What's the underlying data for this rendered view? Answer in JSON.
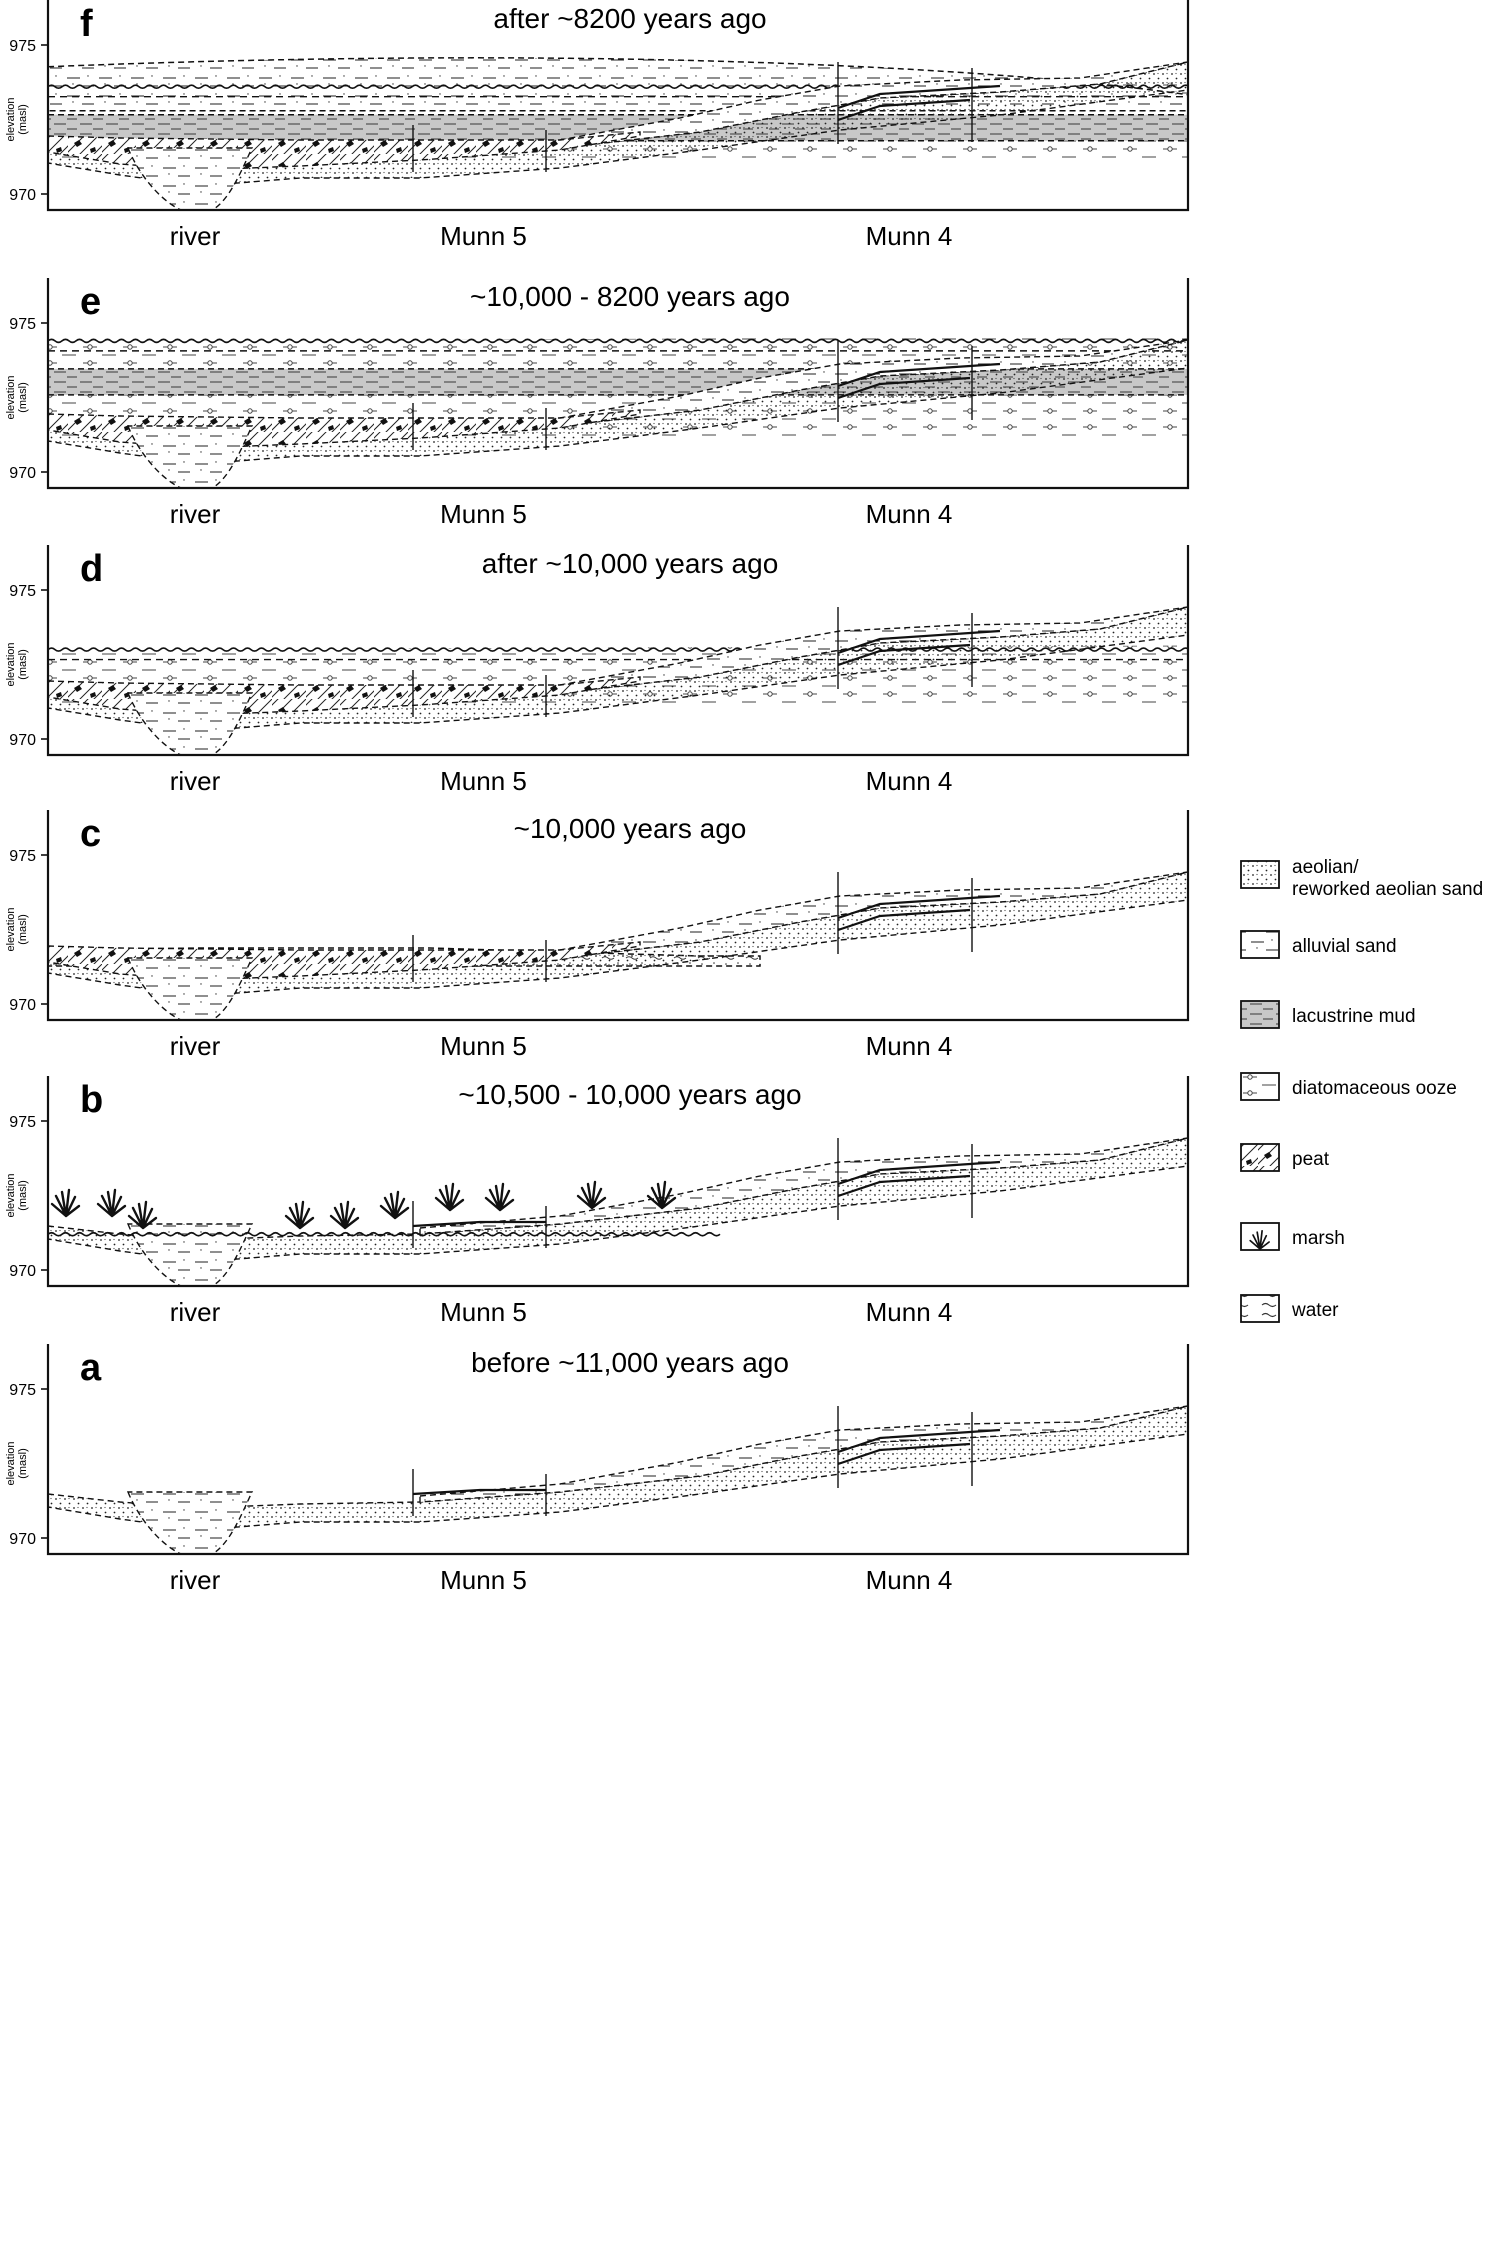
{
  "figure": {
    "panels": [
      {
        "id": "f",
        "letter": "f",
        "title": "after ~8200 years ago",
        "layers": [
          "peat",
          "aeolian",
          "alluvial",
          "diatom",
          "mud",
          "water"
        ],
        "water_type": "lake",
        "water_level": 973.6
      },
      {
        "id": "e",
        "letter": "e",
        "title": "~10,000 - 8200 years ago",
        "layers": [
          "peat",
          "aeolian",
          "alluvial",
          "diatom",
          "mud",
          "water"
        ],
        "water_type": "lake",
        "water_level": 974.4
      },
      {
        "id": "d",
        "letter": "d",
        "title": "after ~10,000 years ago",
        "layers": [
          "peat",
          "aeolian",
          "alluvial",
          "diatom",
          "water"
        ],
        "water_type": "lake",
        "water_level": 973.0
      },
      {
        "id": "c",
        "letter": "c",
        "title": "~10,000 years ago",
        "layers": [
          "peat",
          "aeolian",
          "alluvial",
          "water"
        ],
        "water_type": "pond",
        "water_level": 972.1
      },
      {
        "id": "b",
        "letter": "b",
        "title": "~10,500 - 10,000 years ago",
        "layers": [
          "aeolian",
          "alluvial",
          "marsh"
        ],
        "water_type": "marsh",
        "water_level": 971.2
      },
      {
        "id": "a",
        "letter": "a",
        "title": "before ~11,000 years ago",
        "layers": [
          "aeolian",
          "alluvial"
        ],
        "water_type": "none",
        "water_level": null
      }
    ],
    "y_axis": {
      "label_line1": "elevation",
      "label_line2": "(masl)",
      "ticks": [
        "975",
        "970"
      ]
    },
    "site_labels": {
      "river": "river",
      "munn5": "Munn 5",
      "munn4": "Munn 4"
    },
    "legend": [
      {
        "key": "aeolian",
        "label_line1": "aeolian/",
        "label_line2": "reworked aeolian sand"
      },
      {
        "key": "alluvial",
        "label_line1": "alluvial sand",
        "label_line2": ""
      },
      {
        "key": "mud",
        "label_line1": "lacustrine mud",
        "label_line2": ""
      },
      {
        "key": "diatom",
        "label_line1": "diatomaceous ooze",
        "label_line2": ""
      },
      {
        "key": "peat",
        "label_line1": "peat",
        "label_line2": ""
      },
      {
        "key": "marsh",
        "label_line1": "marsh",
        "label_line2": ""
      },
      {
        "key": "water",
        "label_line1": "water",
        "label_line2": ""
      }
    ],
    "colors": {
      "ink": "#111111",
      "mud_fill": "#c8c8c8",
      "background": "#ffffff"
    }
  }
}
